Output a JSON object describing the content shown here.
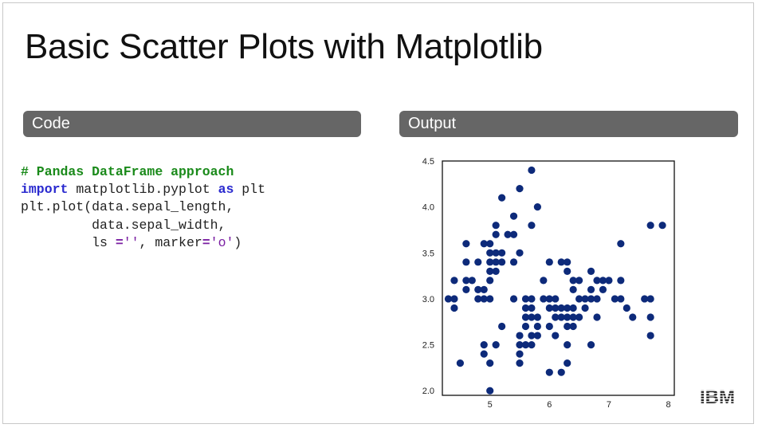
{
  "slide": {
    "title": "Basic Scatter Plots with Matplotlib",
    "code_header": "Code",
    "output_header": "Output",
    "header_color": "#666666",
    "logo_text": "IBM"
  },
  "code": {
    "line1": "# Pandas DataFrame approach",
    "line2_kw1": "import",
    "line2_mid": " matplotlib.pyplot ",
    "line2_kw2": "as",
    "line2_end": " plt",
    "line3": "plt.plot(data.sepal_length,",
    "line4": "         data.sepal_width,",
    "line5_a": "         ls ",
    "line5_op": "=",
    "line5_s1": "''",
    "line5_b": ", marker",
    "line5_op2": "=",
    "line5_s2": "'o'",
    "line5_c": ")"
  },
  "chart_data": {
    "type": "scatter",
    "title": "",
    "xlabel": "",
    "ylabel": "",
    "xlim": [
      4.2,
      8.1
    ],
    "ylim": [
      1.95,
      4.5
    ],
    "xticks": [
      5,
      6,
      7,
      8
    ],
    "yticks": [
      2.0,
      2.5,
      3.0,
      3.5,
      4.0,
      4.5
    ],
    "marker_color": "#0d2a7a",
    "points": [
      [
        4.3,
        3.0
      ],
      [
        4.4,
        2.9
      ],
      [
        4.4,
        3.0
      ],
      [
        4.4,
        3.2
      ],
      [
        4.5,
        2.3
      ],
      [
        4.6,
        3.1
      ],
      [
        4.6,
        3.2
      ],
      [
        4.6,
        3.4
      ],
      [
        4.6,
        3.6
      ],
      [
        4.7,
        3.2
      ],
      [
        4.8,
        3.0
      ],
      [
        4.8,
        3.1
      ],
      [
        4.8,
        3.4
      ],
      [
        4.9,
        2.4
      ],
      [
        4.9,
        2.5
      ],
      [
        4.9,
        3.0
      ],
      [
        4.9,
        3.1
      ],
      [
        4.9,
        3.6
      ],
      [
        5.0,
        2.0
      ],
      [
        5.0,
        2.3
      ],
      [
        5.0,
        3.0
      ],
      [
        5.0,
        3.2
      ],
      [
        5.0,
        3.3
      ],
      [
        5.0,
        3.4
      ],
      [
        5.0,
        3.5
      ],
      [
        5.0,
        3.6
      ],
      [
        5.1,
        2.5
      ],
      [
        5.1,
        3.3
      ],
      [
        5.1,
        3.4
      ],
      [
        5.1,
        3.5
      ],
      [
        5.1,
        3.7
      ],
      [
        5.1,
        3.8
      ],
      [
        5.2,
        2.7
      ],
      [
        5.2,
        3.4
      ],
      [
        5.2,
        3.5
      ],
      [
        5.2,
        4.1
      ],
      [
        5.3,
        3.7
      ],
      [
        5.4,
        3.0
      ],
      [
        5.4,
        3.4
      ],
      [
        5.4,
        3.7
      ],
      [
        5.4,
        3.9
      ],
      [
        5.5,
        2.3
      ],
      [
        5.5,
        2.4
      ],
      [
        5.5,
        2.5
      ],
      [
        5.5,
        2.6
      ],
      [
        5.5,
        3.5
      ],
      [
        5.5,
        4.2
      ],
      [
        5.6,
        2.5
      ],
      [
        5.6,
        2.7
      ],
      [
        5.6,
        2.8
      ],
      [
        5.6,
        2.9
      ],
      [
        5.6,
        3.0
      ],
      [
        5.7,
        2.5
      ],
      [
        5.7,
        2.6
      ],
      [
        5.7,
        2.8
      ],
      [
        5.7,
        2.9
      ],
      [
        5.7,
        3.0
      ],
      [
        5.7,
        3.8
      ],
      [
        5.7,
        4.4
      ],
      [
        5.8,
        2.6
      ],
      [
        5.8,
        2.7
      ],
      [
        5.8,
        2.8
      ],
      [
        5.8,
        4.0
      ],
      [
        5.9,
        3.0
      ],
      [
        5.9,
        3.2
      ],
      [
        6.0,
        2.2
      ],
      [
        6.0,
        2.7
      ],
      [
        6.0,
        2.9
      ],
      [
        6.0,
        3.0
      ],
      [
        6.0,
        3.4
      ],
      [
        6.1,
        2.6
      ],
      [
        6.1,
        2.8
      ],
      [
        6.1,
        2.9
      ],
      [
        6.1,
        3.0
      ],
      [
        6.2,
        2.2
      ],
      [
        6.2,
        2.8
      ],
      [
        6.2,
        2.9
      ],
      [
        6.2,
        3.4
      ],
      [
        6.3,
        2.3
      ],
      [
        6.3,
        2.5
      ],
      [
        6.3,
        2.7
      ],
      [
        6.3,
        2.8
      ],
      [
        6.3,
        2.9
      ],
      [
        6.3,
        3.3
      ],
      [
        6.3,
        3.4
      ],
      [
        6.4,
        2.7
      ],
      [
        6.4,
        2.8
      ],
      [
        6.4,
        2.9
      ],
      [
        6.4,
        3.1
      ],
      [
        6.4,
        3.2
      ],
      [
        6.5,
        2.8
      ],
      [
        6.5,
        3.0
      ],
      [
        6.5,
        3.2
      ],
      [
        6.6,
        2.9
      ],
      [
        6.6,
        3.0
      ],
      [
        6.7,
        2.5
      ],
      [
        6.7,
        3.0
      ],
      [
        6.7,
        3.1
      ],
      [
        6.7,
        3.3
      ],
      [
        6.8,
        2.8
      ],
      [
        6.8,
        3.0
      ],
      [
        6.8,
        3.2
      ],
      [
        6.9,
        3.1
      ],
      [
        6.9,
        3.2
      ],
      [
        7.0,
        3.2
      ],
      [
        7.1,
        3.0
      ],
      [
        7.2,
        3.0
      ],
      [
        7.2,
        3.2
      ],
      [
        7.2,
        3.6
      ],
      [
        7.3,
        2.9
      ],
      [
        7.4,
        2.8
      ],
      [
        7.6,
        3.0
      ],
      [
        7.7,
        2.6
      ],
      [
        7.7,
        2.8
      ],
      [
        7.7,
        3.0
      ],
      [
        7.7,
        3.8
      ],
      [
        7.9,
        3.8
      ]
    ]
  }
}
